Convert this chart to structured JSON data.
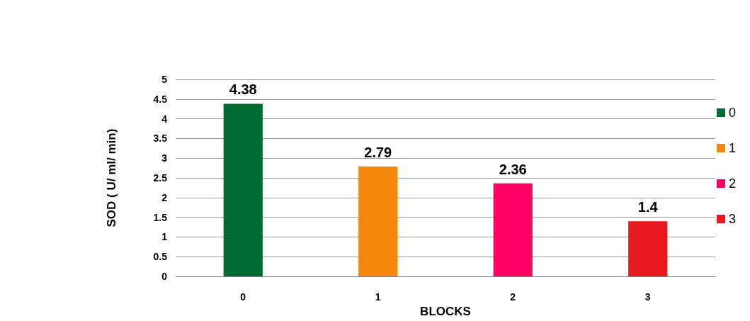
{
  "chart_data": {
    "type": "bar",
    "xlabel": "BLOCKS",
    "ylabel": "SOD ( U/ ml/ min)",
    "categories": [
      "0",
      "1",
      "2",
      "3"
    ],
    "series": [
      {
        "name": "0",
        "color": "#006b33",
        "values": [
          4.38,
          null,
          null,
          null
        ]
      },
      {
        "name": "1",
        "color": "#f5870f",
        "values": [
          null,
          2.79,
          null,
          null
        ]
      },
      {
        "name": "2",
        "color": "#ff0066",
        "values": [
          null,
          null,
          2.36,
          null
        ]
      },
      {
        "name": "3",
        "color": "#e8191f",
        "values": [
          null,
          null,
          null,
          1.4
        ]
      }
    ],
    "ylim": [
      0,
      5
    ],
    "yticks": [
      0,
      0.5,
      1,
      1.5,
      2,
      2.5,
      3,
      3.5,
      4,
      4.5,
      5
    ],
    "grid": "y",
    "legend": "right",
    "data_labels": true
  }
}
